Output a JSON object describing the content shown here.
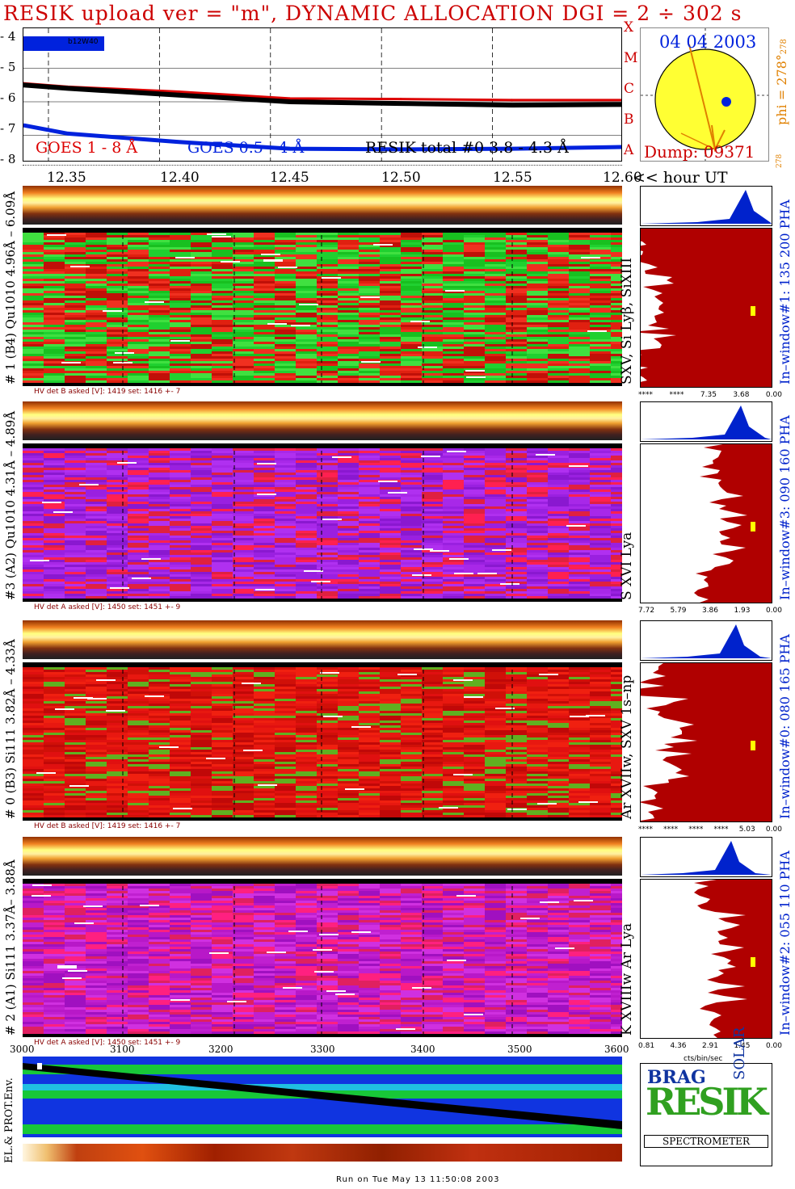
{
  "title": "RESIK upload ver = \"m\", DYNAMIC ALLOCATION  DGI =   2 ÷ 302 s",
  "goes_panel": {
    "y_ticks": [
      "- 4",
      "- 5",
      "- 6",
      "- 7",
      "- 8"
    ],
    "class_letters": [
      "X",
      "M",
      "C",
      "B",
      "A"
    ],
    "legend_goes_long": "GOES 1 -  8 Å",
    "legend_goes_short": "GOES 0.5 -  4 Å",
    "legend_resik": "RESIK total #0  3.8 -  4.3 Å",
    "flag": "b12W40"
  },
  "sun_panel": {
    "date": "04 04 2003",
    "dump": "Dump: 09371",
    "phi": "phi = 278°",
    "phi_sub": "278",
    "phi_side": "278"
  },
  "time_axis": {
    "ticks": [
      "12.35",
      "12.40",
      "12.45",
      "12.50",
      "12.55",
      "12.60"
    ],
    "unit_label": "<< hour UT"
  },
  "channels": [
    {
      "left_label": "# 1 (B4) Qu1010 4.96Å – 6.09Å",
      "lines": "SXV, Si Lyβ, SiXIII",
      "window": "In–window#1:  135 200 PHA",
      "hv": "HV  det B  asked [V]:  1419  set:  1416  +-     7",
      "pha_ticks": [
        "****",
        "****",
        "7.35",
        "3.68",
        "0.00"
      ],
      "body_color": "green-red"
    },
    {
      "left_label": "#3 (A2) Qu1010  4.31Å – 4.89Å",
      "lines": "S XVI Lya",
      "window": "In–window#3:  090 160 PHA",
      "hv": "HV  det A  asked [V]:  1450  set:  1451  +-     9",
      "pha_ticks": [
        "7.72",
        "5.79",
        "3.86",
        "1.93",
        "0.00"
      ],
      "body_color": "purple"
    },
    {
      "left_label": "# 0 (B3) Si111  3.82Å – 4.33Å",
      "lines": "Ar XVIIw, SXV 1s–np",
      "window": "In–window#0:  080 165 PHA",
      "hv": "HV  det B  asked [V]:  1419  set:  1416  +-     7",
      "pha_ticks": [
        "****",
        "****",
        "****",
        "****",
        "5.03",
        "0.00"
      ],
      "body_color": "red"
    },
    {
      "left_label": "# 2 (A1) Si111  3.37Å– 3.88Å",
      "lines": "K XVIIIw  Ar Lya",
      "window": "In–window#2:  055 110 PHA",
      "hv": "HV  det A  asked [V]:  1450  set:  1451  +-     9",
      "pha_ticks": [
        "0.81",
        "4.36",
        "2.91",
        "1.45",
        "0.00"
      ],
      "body_color": "magenta"
    }
  ],
  "pha_unit": "cts/bin/sec",
  "env_panel": {
    "x_ticks": [
      "3000",
      "3100",
      "3200",
      "3300",
      "3400",
      "3500",
      "3600"
    ],
    "ylabel": "EL.& PROT.Env."
  },
  "logo": {
    "big": "RESIK",
    "sub1": "BRAG",
    "sub2": "SOLAR",
    "banner": "SPECTROMETER"
  },
  "footer": "Run on Tue May 13 11:50:08 2003",
  "chart_data": {
    "type": "line",
    "title": "RESIK upload ver = \"m\", DYNAMIC ALLOCATION  DGI =   2 ÷ 302 s",
    "xlabel": "<< hour UT",
    "ylabel": "",
    "x": [
      12.33,
      12.35,
      12.4,
      12.45,
      12.5,
      12.55,
      12.6
    ],
    "ylim": [
      -8,
      -4
    ],
    "xlim": [
      12.33,
      12.6
    ],
    "series": [
      {
        "name": "GOES 1 -  8 Å",
        "color": "#dd0000",
        "values": [
          -5.45,
          -5.55,
          -5.7,
          -5.9,
          -5.92,
          -5.95,
          -5.95
        ]
      },
      {
        "name": "RESIK total #0  3.8 -  4.3 Å",
        "color": "#000000",
        "values": [
          -5.5,
          -5.6,
          -5.8,
          -6.0,
          -6.05,
          -6.1,
          -6.08
        ]
      },
      {
        "name": "GOES 0.5 -  4 Å",
        "color": "#0022dd",
        "values": [
          -6.7,
          -6.95,
          -7.2,
          -7.4,
          -7.42,
          -7.4,
          -7.35
        ]
      }
    ],
    "grid": true
  },
  "colors": {
    "goes_long": "#dd0000",
    "goes_short": "#0022dd",
    "resik": "#000000",
    "pha_fill": "#b00000",
    "pha_blue": "#0022cc",
    "sun": "#ffff33",
    "orange": "#e08000"
  }
}
